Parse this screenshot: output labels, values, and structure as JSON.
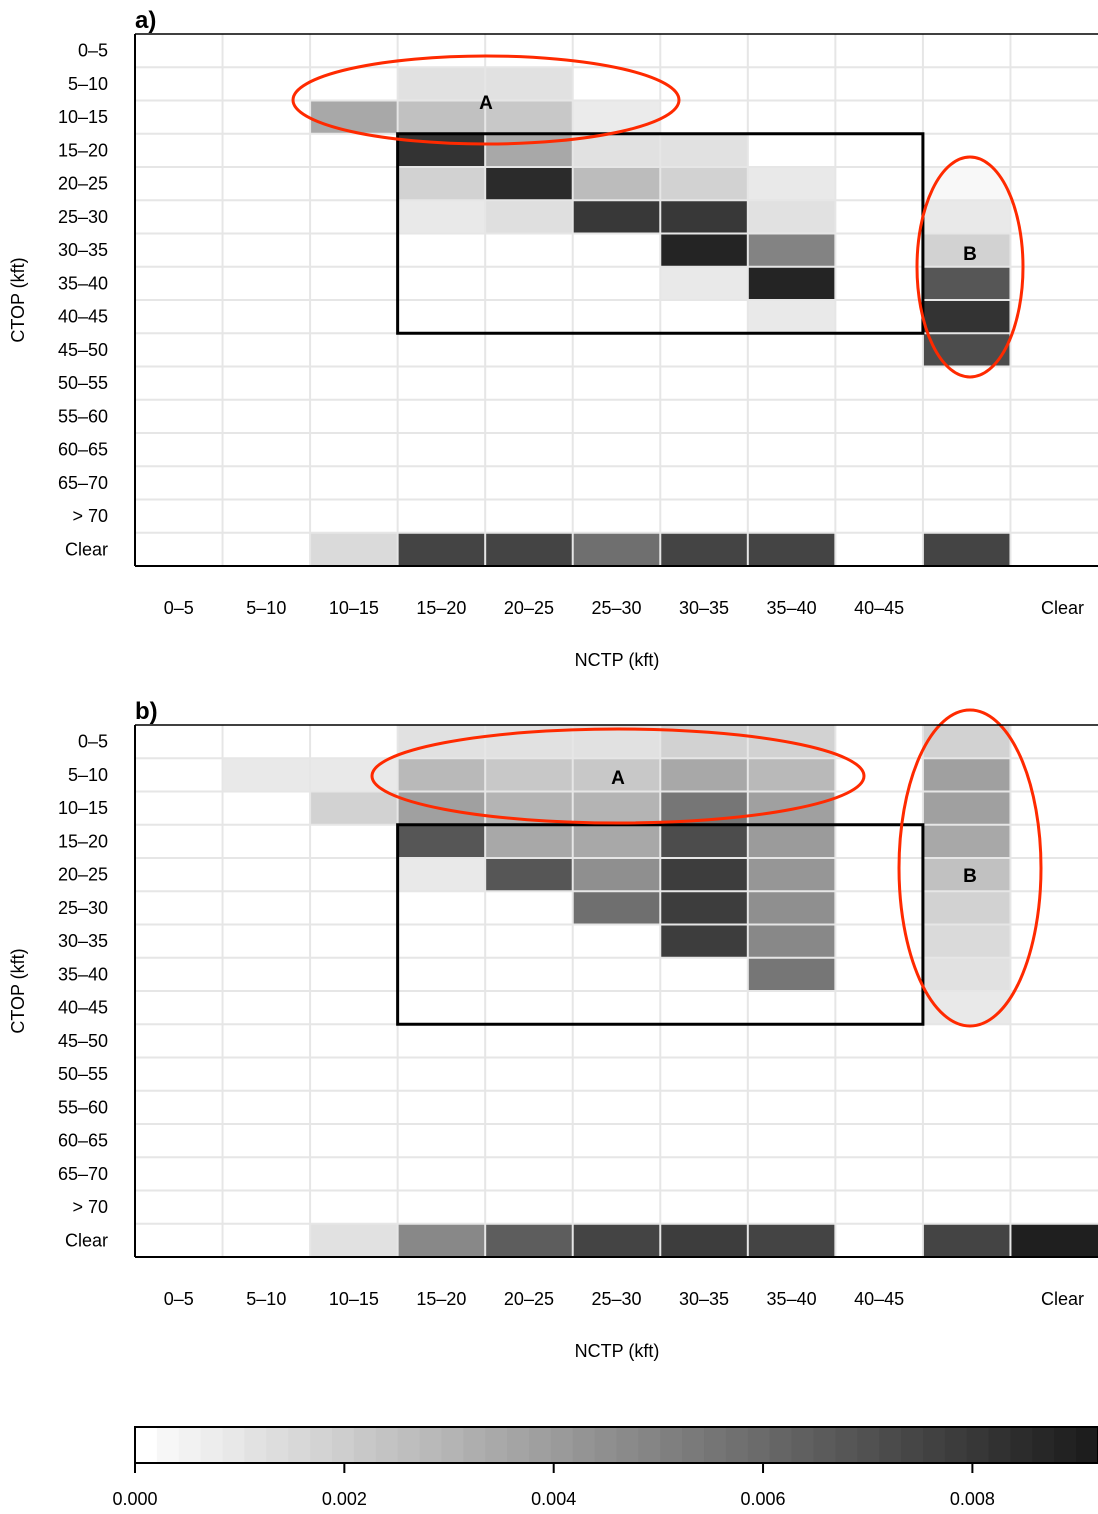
{
  "chart_data": [
    {
      "type": "heatmap",
      "panel_label": "a)",
      "xlabel": "NCTP (kft)",
      "ylabel": "CTOP (kft)",
      "x_categories": [
        "0–5",
        "5–10",
        "10–15",
        "15–20",
        "20–25",
        "25–30",
        "30–35",
        "35–40",
        "40–45",
        "",
        "Clear"
      ],
      "y_categories": [
        "0–5",
        "5–10",
        "10–15",
        "15–20",
        "20–25",
        "25–30",
        "30–35",
        "35–40",
        "40–45",
        "45–50",
        "50–55",
        "55–60",
        "60–65",
        "65–70",
        "> 70",
        "Clear"
      ],
      "color_scale": {
        "min": 0.0,
        "max": 0.0092,
        "low_color": "#ffffff",
        "high_color": "#1a1a1a"
      },
      "cells": [
        {
          "x": "15–20",
          "y": "5–10",
          "value": 0.0012
        },
        {
          "x": "20–25",
          "y": "5–10",
          "value": 0.0012
        },
        {
          "x": "10–15",
          "y": "10–15",
          "value": 0.0035
        },
        {
          "x": "15–20",
          "y": "10–15",
          "value": 0.0025
        },
        {
          "x": "20–25",
          "y": "10–15",
          "value": 0.0022
        },
        {
          "x": "25–30",
          "y": "10–15",
          "value": 0.0008
        },
        {
          "x": "15–20",
          "y": "15–20",
          "value": 0.0082
        },
        {
          "x": "20–25",
          "y": "15–20",
          "value": 0.0035
        },
        {
          "x": "25–30",
          "y": "15–20",
          "value": 0.0012
        },
        {
          "x": "30–35",
          "y": "15–20",
          "value": 0.0012
        },
        {
          "x": "15–20",
          "y": "20–25",
          "value": 0.0018
        },
        {
          "x": "20–25",
          "y": "20–25",
          "value": 0.0085
        },
        {
          "x": "25–30",
          "y": "20–25",
          "value": 0.0027
        },
        {
          "x": "30–35",
          "y": "20–25",
          "value": 0.0018
        },
        {
          "x": "35–40",
          "y": "20–25",
          "value": 0.0009
        },
        {
          "x": "",
          "y": "20–25",
          "value": 0.0003
        },
        {
          "x": "15–20",
          "y": "25–30",
          "value": 0.0009
        },
        {
          "x": "20–25",
          "y": "25–30",
          "value": 0.0013
        },
        {
          "x": "25–30",
          "y": "25–30",
          "value": 0.008
        },
        {
          "x": "30–35",
          "y": "25–30",
          "value": 0.008
        },
        {
          "x": "35–40",
          "y": "25–30",
          "value": 0.0012
        },
        {
          "x": "",
          "y": "25–30",
          "value": 0.0009
        },
        {
          "x": "30–35",
          "y": "30–35",
          "value": 0.0088
        },
        {
          "x": "35–40",
          "y": "30–35",
          "value": 0.005
        },
        {
          "x": "",
          "y": "30–35",
          "value": 0.0018
        },
        {
          "x": "30–35",
          "y": "35–40",
          "value": 0.0009
        },
        {
          "x": "35–40",
          "y": "35–40",
          "value": 0.0088
        },
        {
          "x": "",
          "y": "35–40",
          "value": 0.0068
        },
        {
          "x": "35–40",
          "y": "40–45",
          "value": 0.0009
        },
        {
          "x": "",
          "y": "40–45",
          "value": 0.0082
        },
        {
          "x": "",
          "y": "45–50",
          "value": 0.0072
        },
        {
          "x": "10–15",
          "y": "Clear",
          "value": 0.0015
        },
        {
          "x": "15–20",
          "y": "Clear",
          "value": 0.0075
        },
        {
          "x": "20–25",
          "y": "Clear",
          "value": 0.0075
        },
        {
          "x": "25–30",
          "y": "Clear",
          "value": 0.0058
        },
        {
          "x": "30–35",
          "y": "Clear",
          "value": 0.0075
        },
        {
          "x": "35–40",
          "y": "Clear",
          "value": 0.0075
        },
        {
          "x": "",
          "y": "Clear",
          "value": 0.0075
        }
      ],
      "box": {
        "x_from": "15–20",
        "x_to": "40–45",
        "y_from": "15–20",
        "y_to": "40–45"
      },
      "annotations": [
        {
          "label": "A",
          "shape": "ellipse",
          "color": "#ff2a00"
        },
        {
          "label": "B",
          "shape": "ellipse",
          "color": "#ff2a00"
        }
      ]
    },
    {
      "type": "heatmap",
      "panel_label": "b)",
      "xlabel": "NCTP (kft)",
      "ylabel": "CTOP (kft)",
      "x_categories": [
        "0–5",
        "5–10",
        "10–15",
        "15–20",
        "20–25",
        "25–30",
        "30–35",
        "35–40",
        "40–45",
        "",
        "Clear"
      ],
      "y_categories": [
        "0–5",
        "5–10",
        "10–15",
        "15–20",
        "20–25",
        "25–30",
        "30–35",
        "35–40",
        "40–45",
        "45–50",
        "50–55",
        "55–60",
        "60–65",
        "65–70",
        "> 70",
        "Clear"
      ],
      "color_scale": {
        "min": 0.0,
        "max": 0.0092,
        "low_color": "#ffffff",
        "high_color": "#1a1a1a"
      },
      "cells": [
        {
          "x": "15–20",
          "y": "0–5",
          "value": 0.0012
        },
        {
          "x": "20–25",
          "y": "0–5",
          "value": 0.0012
        },
        {
          "x": "25–30",
          "y": "0–5",
          "value": 0.0012
        },
        {
          "x": "30–35",
          "y": "0–5",
          "value": 0.0018
        },
        {
          "x": "35–40",
          "y": "0–5",
          "value": 0.0018
        },
        {
          "x": "",
          "y": "0–5",
          "value": 0.0018
        },
        {
          "x": "5–10",
          "y": "5–10",
          "value": 0.0009
        },
        {
          "x": "10–15",
          "y": "5–10",
          "value": 0.0009
        },
        {
          "x": "15–20",
          "y": "5–10",
          "value": 0.0028
        },
        {
          "x": "20–25",
          "y": "5–10",
          "value": 0.0022
        },
        {
          "x": "25–30",
          "y": "5–10",
          "value": 0.0022
        },
        {
          "x": "30–35",
          "y": "5–10",
          "value": 0.0035
        },
        {
          "x": "35–40",
          "y": "5–10",
          "value": 0.0028
        },
        {
          "x": "",
          "y": "5–10",
          "value": 0.0038
        },
        {
          "x": "10–15",
          "y": "10–15",
          "value": 0.0018
        },
        {
          "x": "15–20",
          "y": "10–15",
          "value": 0.0038
        },
        {
          "x": "20–25",
          "y": "10–15",
          "value": 0.003
        },
        {
          "x": "25–30",
          "y": "10–15",
          "value": 0.003
        },
        {
          "x": "30–35",
          "y": "10–15",
          "value": 0.0055
        },
        {
          "x": "35–40",
          "y": "10–15",
          "value": 0.0038
        },
        {
          "x": "",
          "y": "10–15",
          "value": 0.0038
        },
        {
          "x": "15–20",
          "y": "15–20",
          "value": 0.0068
        },
        {
          "x": "20–25",
          "y": "15–20",
          "value": 0.0035
        },
        {
          "x": "25–30",
          "y": "15–20",
          "value": 0.0035
        },
        {
          "x": "30–35",
          "y": "15–20",
          "value": 0.0072
        },
        {
          "x": "35–40",
          "y": "15–20",
          "value": 0.004
        },
        {
          "x": "",
          "y": "15–20",
          "value": 0.0035
        },
        {
          "x": "15–20",
          "y": "20–25",
          "value": 0.0009
        },
        {
          "x": "20–25",
          "y": "20–25",
          "value": 0.0068
        },
        {
          "x": "25–30",
          "y": "20–25",
          "value": 0.0045
        },
        {
          "x": "30–35",
          "y": "20–25",
          "value": 0.0078
        },
        {
          "x": "35–40",
          "y": "20–25",
          "value": 0.0042
        },
        {
          "x": "",
          "y": "20–25",
          "value": 0.0025
        },
        {
          "x": "25–30",
          "y": "25–30",
          "value": 0.0058
        },
        {
          "x": "30–35",
          "y": "25–30",
          "value": 0.0078
        },
        {
          "x": "35–40",
          "y": "25–30",
          "value": 0.0045
        },
        {
          "x": "",
          "y": "25–30",
          "value": 0.0018
        },
        {
          "x": "30–35",
          "y": "30–35",
          "value": 0.0078
        },
        {
          "x": "35–40",
          "y": "30–35",
          "value": 0.0048
        },
        {
          "x": "",
          "y": "30–35",
          "value": 0.0015
        },
        {
          "x": "35–40",
          "y": "35–40",
          "value": 0.0055
        },
        {
          "x": "",
          "y": "35–40",
          "value": 0.0012
        },
        {
          "x": "",
          "y": "40–45",
          "value": 0.0009
        },
        {
          "x": "10–15",
          "y": "Clear",
          "value": 0.0012
        },
        {
          "x": "15–20",
          "y": "Clear",
          "value": 0.0048
        },
        {
          "x": "20–25",
          "y": "Clear",
          "value": 0.0065
        },
        {
          "x": "25–30",
          "y": "Clear",
          "value": 0.0075
        },
        {
          "x": "30–35",
          "y": "Clear",
          "value": 0.0078
        },
        {
          "x": "35–40",
          "y": "Clear",
          "value": 0.0075
        },
        {
          "x": "",
          "y": "Clear",
          "value": 0.0075
        },
        {
          "x": "Clear",
          "y": "Clear",
          "value": 0.009
        }
      ],
      "box": {
        "x_from": "15–20",
        "x_to": "40–45",
        "y_from": "15–20",
        "y_to": "40–45"
      },
      "annotations": [
        {
          "label": "A",
          "shape": "ellipse",
          "color": "#ff2a00"
        },
        {
          "label": "B",
          "shape": "ellipse",
          "color": "#ff2a00"
        }
      ]
    },
    {
      "type": "colorbar",
      "orientation": "horizontal",
      "range": [
        0.0,
        0.0092
      ],
      "ticks": [
        0.0,
        0.002,
        0.004,
        0.006,
        0.008
      ],
      "tick_labels": [
        "0.000",
        "0.002",
        "0.004",
        "0.006",
        "0.008"
      ],
      "levels": 44
    }
  ]
}
